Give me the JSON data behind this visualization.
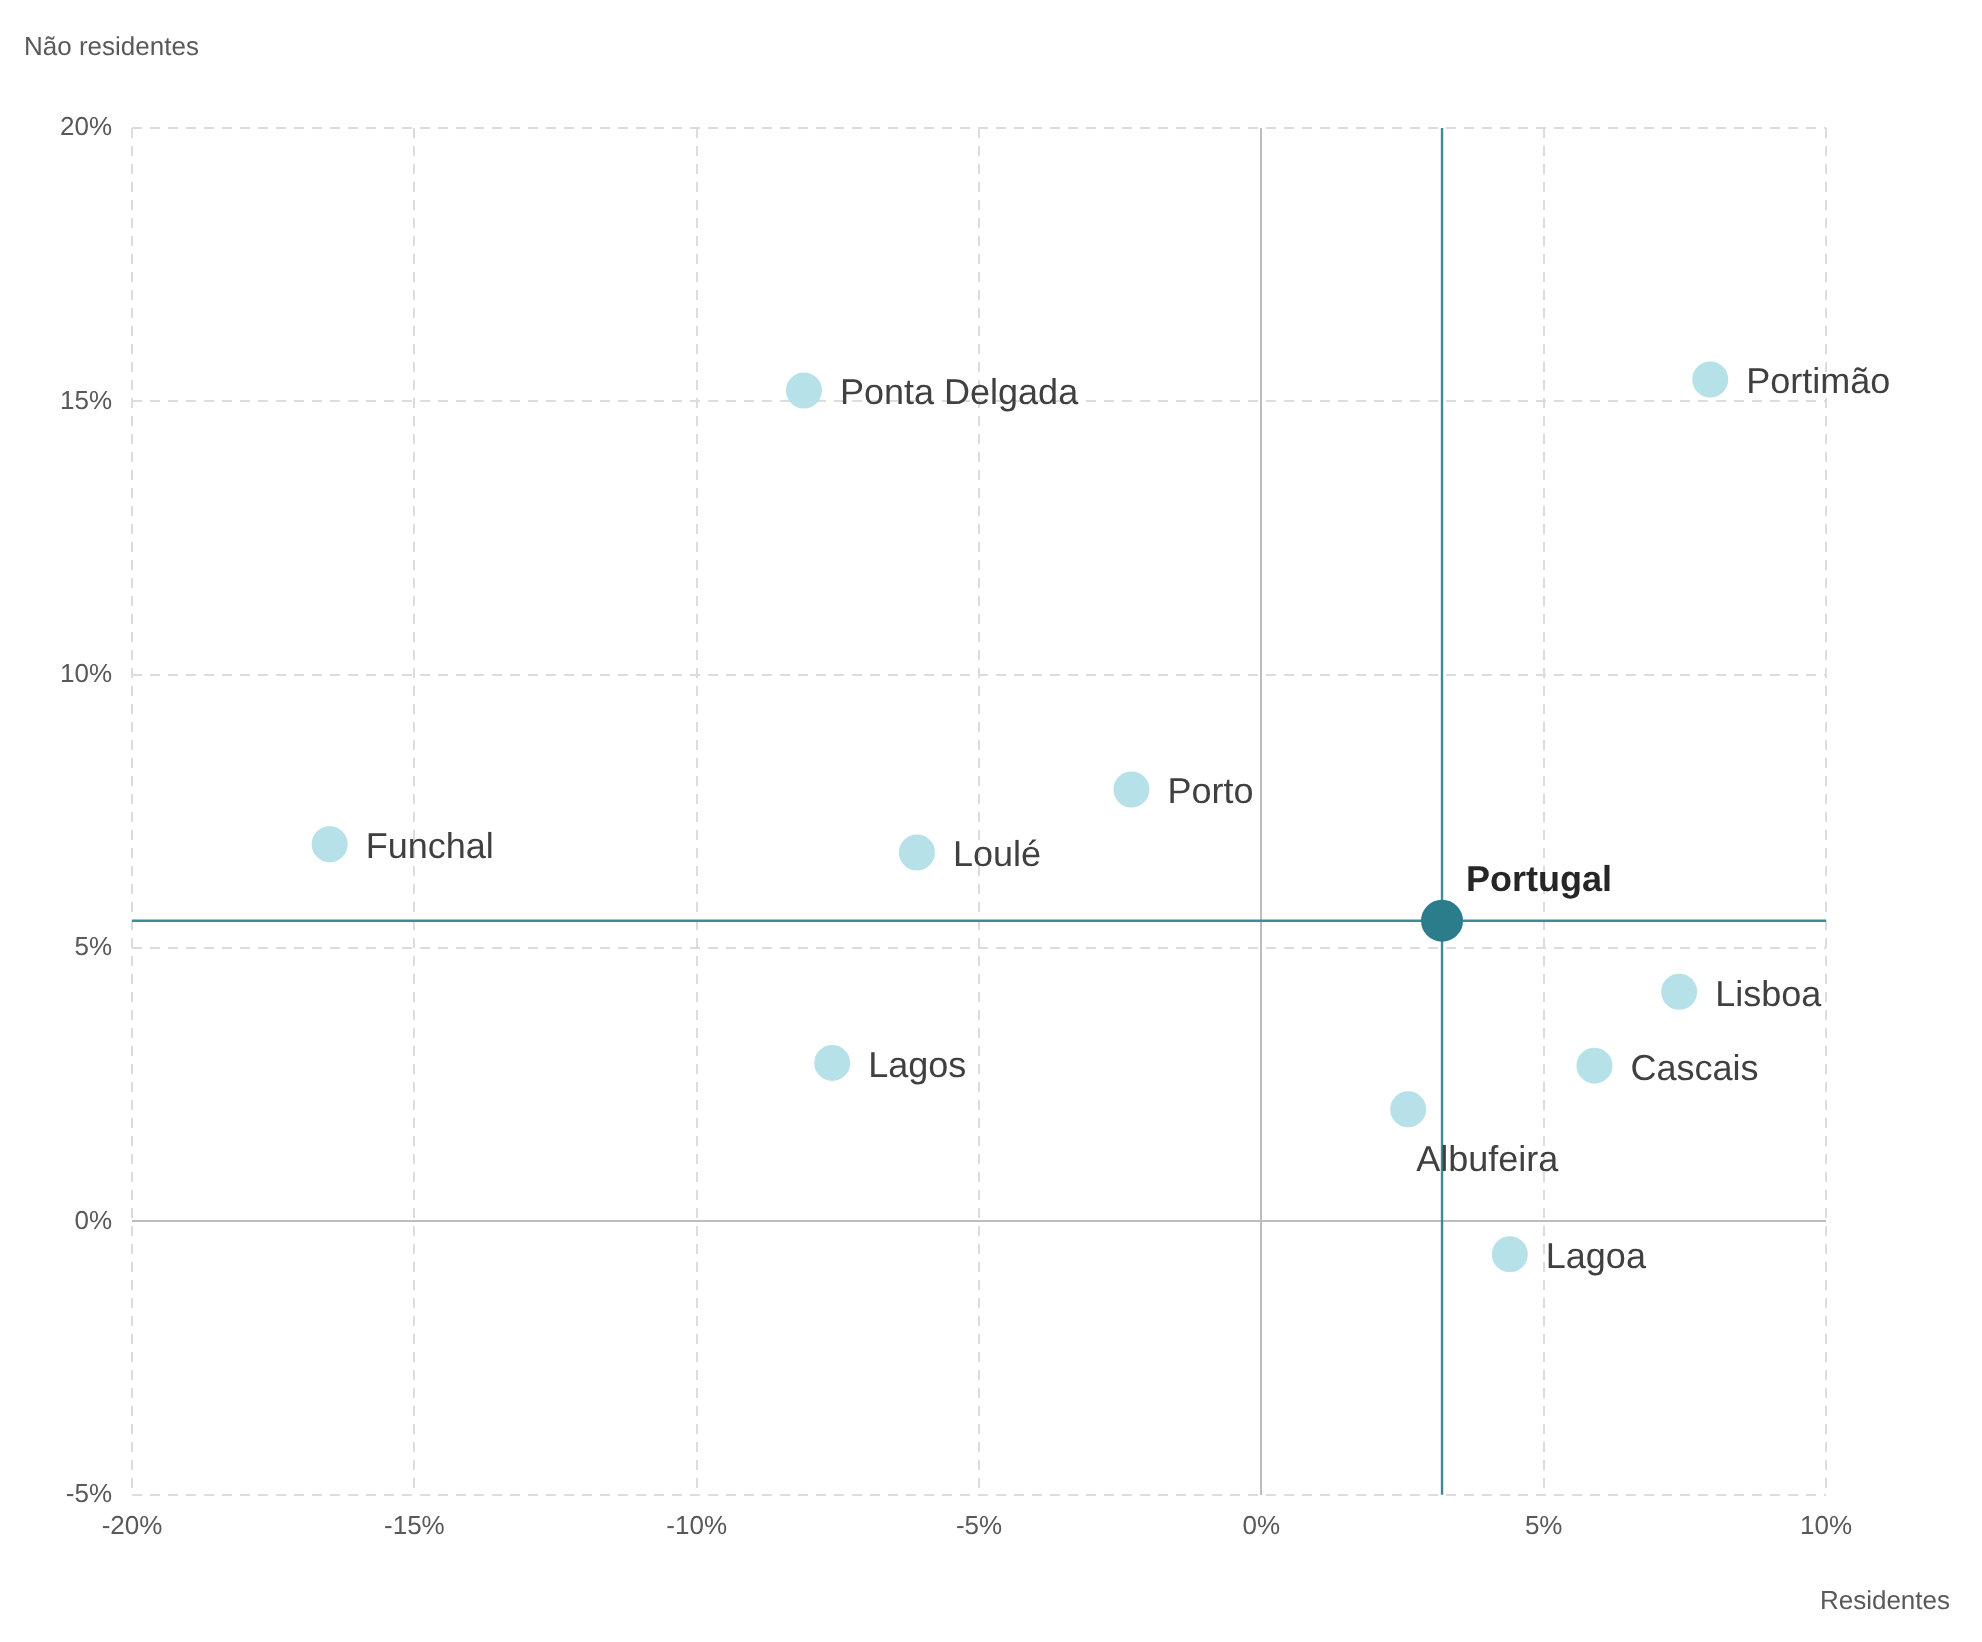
{
  "chart_data": {
    "type": "scatter",
    "xlabel": "Residentes",
    "ylabel": "Não residentes",
    "xlim": [
      -20,
      10
    ],
    "xticks": [
      {
        "value": -20,
        "label": "-20%"
      },
      {
        "value": -15,
        "label": "-15%"
      },
      {
        "value": -10,
        "label": "-10%"
      },
      {
        "value": -5,
        "label": "-5%"
      },
      {
        "value": 0,
        "label": "0%"
      },
      {
        "value": 5,
        "label": "5%"
      },
      {
        "value": 10,
        "label": "10%"
      }
    ],
    "ylim": [
      -5,
      20
    ],
    "yticks": [
      {
        "value": -5,
        "label": "-5%"
      },
      {
        "value": 0,
        "label": "0%"
      },
      {
        "value": 5,
        "label": "5%"
      },
      {
        "value": 10,
        "label": "10%"
      },
      {
        "value": 15,
        "label": "15%"
      },
      {
        "value": 20,
        "label": "20%"
      }
    ],
    "grid": true,
    "legend": false,
    "marker": "circle",
    "series": [
      {
        "color": "#b7e1e8",
        "x": [
          -8.1,
          7.95,
          -16.5,
          -6.1,
          -2.3,
          7.4,
          5.9,
          2.6,
          4.4,
          -7.6
        ],
        "values": [
          15.2,
          15.4,
          6.9,
          6.75,
          7.9,
          4.2,
          2.85,
          2.05,
          -0.6,
          2.9
        ]
      },
      {
        "name": "Portugal",
        "color": "#2b7d8c",
        "x": [
          3.2
        ],
        "values": [
          5.5
        ]
      }
    ],
    "ref_lines": [
      {
        "axis": "x",
        "value": 3.2,
        "color": "#3d8b97"
      },
      {
        "axis": "y",
        "value": 5.5,
        "color": "#3d8b97"
      }
    ],
    "annotations": [
      {
        "text": "Ponta Delgada",
        "x": -8.1,
        "y": 15.2
      },
      {
        "text": "Portimão",
        "x": 7.95,
        "y": 15.4
      },
      {
        "text": "Funchal",
        "x": -16.5,
        "y": 6.9
      },
      {
        "text": "Loulé",
        "x": -6.1,
        "y": 6.75
      },
      {
        "text": "Porto",
        "x": -2.3,
        "y": 7.9
      },
      {
        "text": "Lisboa",
        "x": 7.4,
        "y": 4.2
      },
      {
        "text": "Cascais",
        "x": 5.9,
        "y": 2.85
      },
      {
        "text": "Albufeira",
        "x": 2.6,
        "y": 2.05
      },
      {
        "text": "Lagoa",
        "x": 4.4,
        "y": -0.6
      },
      {
        "text": "Lagos",
        "x": -7.6,
        "y": 2.9
      }
    ]
  }
}
